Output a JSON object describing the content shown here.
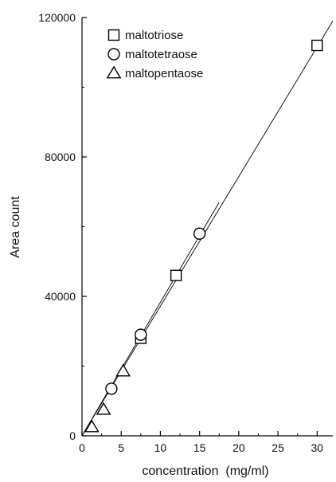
{
  "chart_data": {
    "type": "scatter",
    "xlabel": "concentration  (mg/ml)",
    "ylabel": "Area count",
    "xlim": [
      0,
      32
    ],
    "ylim": [
      0,
      120000
    ],
    "x_ticks": [
      0,
      5,
      10,
      15,
      20,
      25,
      30
    ],
    "y_ticks": [
      0,
      40000,
      80000,
      120000
    ],
    "x_tick_labels": [
      "0",
      "5",
      "10",
      "15",
      "20",
      "25",
      "30"
    ],
    "y_tick_labels": [
      "0",
      "40000",
      "80000",
      "120000"
    ],
    "grid": false,
    "legend_position": "top-left",
    "series": [
      {
        "name": "maltotriose",
        "marker": "square",
        "x": [
          7.5,
          12,
          30
        ],
        "y": [
          28000,
          46000,
          112000
        ]
      },
      {
        "name": "maltotetraose",
        "marker": "circle",
        "x": [
          3.75,
          7.5,
          15
        ],
        "y": [
          13500,
          29000,
          58000
        ]
      },
      {
        "name": "maltopentaose",
        "marker": "triangle",
        "x": [
          1.25,
          2.75,
          5.25
        ],
        "y": [
          2500,
          7500,
          18500
        ]
      }
    ],
    "fit_lines": [
      {
        "x": [
          0,
          32
        ],
        "y": [
          0,
          119000
        ]
      },
      {
        "x": [
          0,
          17.5
        ],
        "y": [
          0,
          67000
        ]
      }
    ]
  }
}
